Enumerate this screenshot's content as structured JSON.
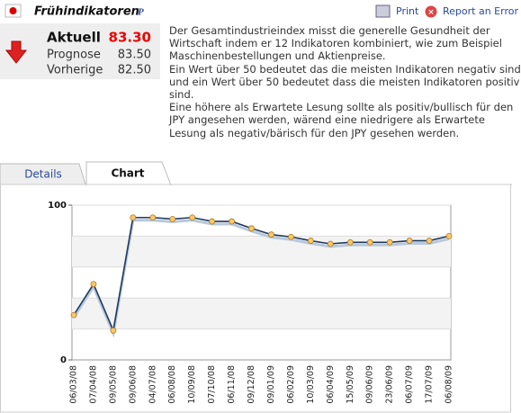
{
  "header": {
    "title": "Frühindikatoren",
    "badge": "P",
    "print": "Print",
    "report": "Report an Error"
  },
  "values": {
    "current_label": "Aktuell",
    "current": "83.30",
    "forecast_label": "Prognose",
    "forecast": "83.50",
    "previous_label": "Vorherige",
    "previous": "82.50"
  },
  "description": [
    "Der Gesamtindustrieindex misst die generelle Gesundheit der",
    "Wirtschaft indem er 12 Indikatoren kombiniert, wie zum Beispiel",
    "Maschinenbestellungen und Aktienpreise.",
    "Ein Wert über 50 bedeutet das die meisten Indikatoren negativ sind",
    "und ein Wert über 50 bedeutet dass die meisten Indikatoren positiv",
    "sind.",
    "Eine höhere als Erwartete Lesung sollte als positiv/bullisch für den",
    "JPY angesehen werden, wärend eine niedrigere als Erwartete",
    "Lesung als negativ/bärisch für den JPY gesehen werden."
  ],
  "tabs": [
    "Details",
    "Chart"
  ],
  "chart_data": {
    "type": "line",
    "categories": [
      "06/03/08",
      "07/04/08",
      "09/05/08",
      "09/06/08",
      "04/07/08",
      "06/08/08",
      "10/09/08",
      "07/10/08",
      "06/11/08",
      "09/12/08",
      "09/01/09",
      "06/02/09",
      "10/03/09",
      "06/04/09",
      "15/05/09",
      "09/06/09",
      "23/06/09",
      "06/07/09",
      "17/07/09",
      "06/08/09"
    ],
    "values": [
      29,
      49,
      19,
      92,
      92,
      91,
      92,
      89.5,
      89.5,
      85,
      81,
      79.5,
      77,
      75,
      76,
      76,
      76,
      77,
      77,
      80
    ],
    "color": "#1f3a5f",
    "ylim": [
      0,
      100
    ],
    "yticks": [
      0,
      100
    ],
    "ygrid": [
      20,
      40,
      60,
      80,
      100
    ],
    "grid": true
  }
}
